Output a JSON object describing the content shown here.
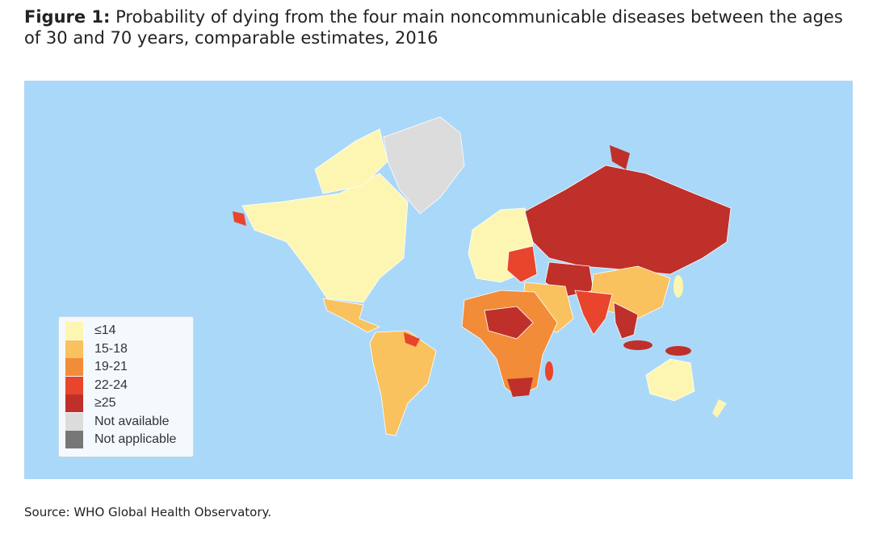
{
  "figure": {
    "label": "Figure 1:",
    "title": "Probability of dying from the four main noncommunicable diseases between the ages of 30 and 70 years, comparable estimates, 2016"
  },
  "legend": {
    "items": [
      {
        "label": "≤14",
        "color": "#fdf6b2"
      },
      {
        "label": "15-18",
        "color": "#f9c25e"
      },
      {
        "label": "19-21",
        "color": "#f28c38"
      },
      {
        "label": "22-24",
        "color": "#e8452c"
      },
      {
        "label": "≥25",
        "color": "#bf302a"
      },
      {
        "label": "Not available",
        "color": "#dcdcdc"
      },
      {
        "label": "Not applicable",
        "color": "#777777"
      }
    ]
  },
  "source": "Source: WHO Global Health Observatory."
}
